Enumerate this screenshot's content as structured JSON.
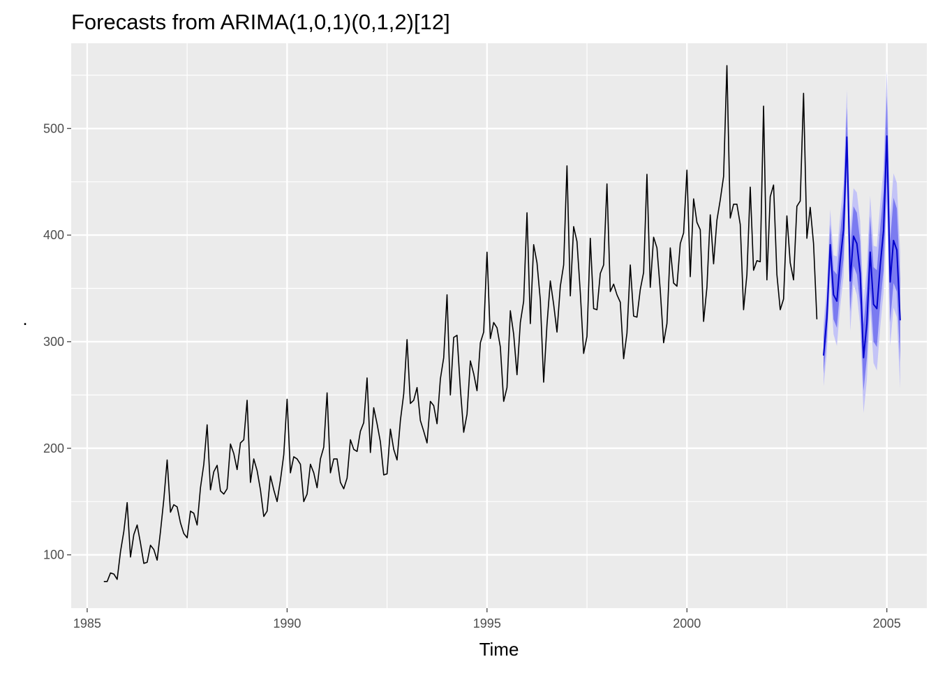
{
  "chart_data": {
    "type": "line",
    "title": "Forecasts from ARIMA(1,0,1)(0,1,2)[12]",
    "xlabel": "Time",
    "ylabel": ".",
    "xlim": [
      1984.6,
      2006.0
    ],
    "ylim": [
      50,
      580
    ],
    "x_ticks": [
      1985,
      1990,
      1995,
      2000,
      2005
    ],
    "x_tick_labels": [
      "1985",
      "1990",
      "1995",
      "2000",
      "2005"
    ],
    "y_ticks": [
      100,
      200,
      300,
      400,
      500
    ],
    "y_tick_labels": [
      "100",
      "200",
      "300",
      "400",
      "500"
    ],
    "grid": true,
    "legend": "none",
    "colors": {
      "panel": "#ebebeb",
      "grid_major": "#ffffff",
      "history_line": "#000000",
      "forecast_line": "#0000cc",
      "band_80": "#7b7bf0",
      "band_95": "#c3c3f7"
    },
    "history": {
      "start": [
        1985,
        6
      ],
      "frequency": 12,
      "values": [
        75,
        75,
        83,
        82,
        77,
        103,
        122,
        149,
        98,
        119,
        128,
        111,
        92,
        93,
        109,
        105,
        95,
        122,
        152,
        189,
        140,
        147,
        145,
        130,
        120,
        116,
        141,
        139,
        128,
        163,
        185,
        222,
        161,
        178,
        184,
        160,
        157,
        162,
        204,
        195,
        180,
        205,
        208,
        245,
        168,
        190,
        179,
        161,
        136,
        141,
        174,
        161,
        150,
        170,
        194,
        246,
        177,
        192,
        190,
        185,
        150,
        157,
        185,
        177,
        163,
        190,
        201,
        252,
        177,
        190,
        190,
        168,
        162,
        172,
        208,
        199,
        197,
        216,
        224,
        266,
        196,
        238,
        223,
        206,
        175,
        176,
        218,
        199,
        189,
        226,
        251,
        302,
        242,
        245,
        257,
        226,
        216,
        205,
        244,
        240,
        223,
        265,
        285,
        344,
        250,
        304,
        306,
        256,
        215,
        232,
        282,
        270,
        254,
        299,
        309,
        384,
        303,
        318,
        313,
        295,
        244,
        257,
        329,
        307,
        269,
        318,
        338,
        421,
        317,
        391,
        374,
        339,
        262,
        316,
        357,
        335,
        309,
        352,
        372,
        465,
        343,
        408,
        394,
        346,
        289,
        305,
        397,
        331,
        330,
        364,
        372,
        448,
        347,
        354,
        344,
        337,
        284,
        308,
        372,
        324,
        323,
        349,
        365,
        457,
        351,
        398,
        388,
        348,
        299,
        317,
        388,
        355,
        352,
        392,
        402,
        461,
        361,
        434,
        412,
        405,
        319,
        351,
        419,
        373,
        414,
        433,
        455,
        559,
        416,
        429,
        429,
        410,
        330,
        363,
        445,
        367,
        376,
        375,
        521,
        358,
        436,
        447,
        363,
        330,
        340,
        418,
        374,
        358,
        427,
        432,
        533,
        397,
        426,
        392,
        321
      ]
    },
    "forecast": {
      "start": [
        2003,
        6
      ],
      "frequency": 12,
      "mean": [
        287,
        322,
        391,
        344,
        338,
        376,
        405,
        492,
        357,
        399,
        392,
        364,
        285,
        317,
        384,
        335,
        331,
        371,
        404,
        493,
        356,
        395,
        386,
        320
      ],
      "lo80": [
        270,
        304,
        372,
        321,
        313,
        350,
        378,
        464,
        328,
        371,
        363,
        334,
        254,
        285,
        350,
        300,
        295,
        335,
        367,
        455,
        318,
        355,
        347,
        281
      ],
      "hi80": [
        304,
        340,
        410,
        367,
        363,
        402,
        432,
        520,
        386,
        427,
        421,
        394,
        316,
        349,
        418,
        370,
        367,
        407,
        441,
        531,
        394,
        435,
        425,
        359
      ],
      "lo95": [
        258,
        290,
        358,
        307,
        296,
        333,
        361,
        448,
        310,
        354,
        344,
        315,
        233,
        264,
        331,
        280,
        273,
        313,
        346,
        432,
        296,
        332,
        323,
        256
      ],
      "hi95": [
        316,
        354,
        424,
        381,
        380,
        419,
        449,
        536,
        404,
        444,
        440,
        413,
        337,
        370,
        437,
        390,
        389,
        429,
        462,
        554,
        416,
        458,
        449,
        384
      ]
    }
  }
}
